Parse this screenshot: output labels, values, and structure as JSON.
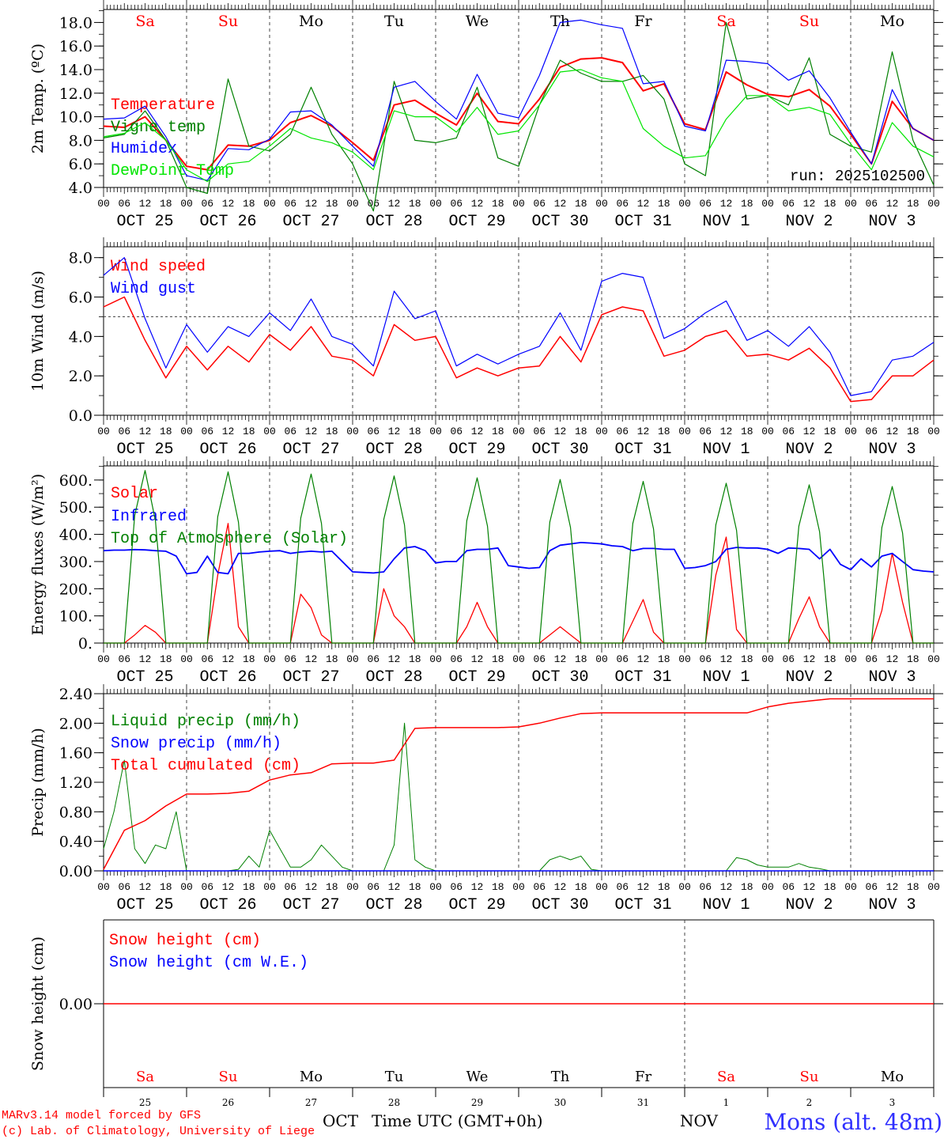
{
  "time_axis": {
    "hour_labels": [
      "00",
      "06",
      "12",
      "18"
    ],
    "dates": [
      "OCT 25",
      "OCT 26",
      "OCT 27",
      "OCT 28",
      "OCT 29",
      "OCT 30",
      "OCT 31",
      "NOV  1",
      "NOV  2",
      "NOV  3"
    ],
    "weekdays": [
      "Sa",
      "Su",
      "Mo",
      "Tu",
      "We",
      "Th",
      "Fr",
      "Sa",
      "Su",
      "Mo"
    ],
    "weekend": [
      true,
      true,
      false,
      false,
      false,
      false,
      false,
      true,
      true,
      false
    ],
    "day_numbers": [
      "25",
      "26",
      "27",
      "28",
      "29",
      "30",
      "31",
      "1",
      "2",
      "3"
    ],
    "month_labels": [
      "OCT",
      "NOV"
    ],
    "xlabel": "Time UTC (GMT+0h)"
  },
  "colors": {
    "red": "#ff0000",
    "blue": "#0000ff",
    "darkgreen": "#008000",
    "green": "#00e600",
    "black": "#000000",
    "weekday": "#000000",
    "weekend": "#ff0000"
  },
  "run_label": "run: 2025102500",
  "footer": {
    "model": "MARv3.14 model forced by GFS",
    "credit": "(c) Lab. of Climatology, University of Liege",
    "station": "Mons (alt. 48m)"
  },
  "chart_data": [
    {
      "type": "line",
      "ylabel": "2m Temp. (ºC)",
      "ylim": [
        4,
        19.1
      ],
      "yticks": [
        4,
        6,
        8,
        10,
        12,
        14,
        16,
        18
      ],
      "ytick_labels": [
        "4.0",
        "6.0",
        "8.0",
        "10.0",
        "12.0",
        "14.0",
        "16.0",
        "18.0"
      ],
      "yminor": 1,
      "series": [
        {
          "name": "Temperature",
          "color": "#ff0000",
          "width": 2,
          "step_hours": 6,
          "values": [
            9.2,
            9.1,
            10.0,
            8.0,
            5.8,
            5.5,
            7.6,
            7.5,
            8.0,
            9.5,
            10.1,
            9.2,
            7.8,
            6.3,
            11.0,
            11.4,
            10.3,
            9.3,
            12.0,
            9.6,
            9.4,
            11.5,
            14.2,
            14.9,
            15.0,
            14.6,
            12.2,
            12.8,
            9.4,
            8.9,
            13.8,
            12.7,
            11.9,
            11.7,
            12.3,
            10.9,
            8.5,
            6.0,
            11.3,
            9.0,
            8.0
          ]
        },
        {
          "name": "Vigne temp",
          "color": "#008000",
          "width": 1.2,
          "step_hours": 6,
          "values": [
            8.2,
            8.5,
            10.5,
            8.0,
            4.0,
            3.5,
            13.2,
            7.5,
            7.1,
            8.5,
            12.5,
            8.5,
            6.0,
            2.0,
            13.0,
            8.0,
            7.8,
            8.2,
            12.5,
            6.5,
            5.8,
            11.0,
            14.8,
            13.7,
            13.0,
            13.0,
            13.5,
            11.5,
            6.0,
            5.0,
            18.0,
            11.5,
            11.8,
            11.0,
            15.0,
            8.5,
            7.5,
            7.0,
            15.5,
            8.0,
            4.2
          ]
        },
        {
          "name": "Humidex",
          "color": "#0000ff",
          "width": 1.2,
          "step_hours": 6,
          "values": [
            9.8,
            9.9,
            10.9,
            8.3,
            5.0,
            4.6,
            7.3,
            7.2,
            8.1,
            10.4,
            10.5,
            9.3,
            7.5,
            5.8,
            12.5,
            13.0,
            11.3,
            9.8,
            13.6,
            10.3,
            9.9,
            13.5,
            18.0,
            18.2,
            17.8,
            17.5,
            12.8,
            13.0,
            9.2,
            8.8,
            14.8,
            14.7,
            14.5,
            13.1,
            13.9,
            11.6,
            8.7,
            6.0,
            12.3,
            9.0,
            8.0
          ]
        },
        {
          "name": "DewPoint Temp",
          "color": "#00e600",
          "width": 1.2,
          "step_hours": 6,
          "values": [
            8.3,
            8.6,
            9.5,
            8.0,
            5.5,
            4.5,
            6.0,
            6.2,
            7.5,
            9.0,
            8.2,
            7.8,
            7.0,
            5.5,
            10.5,
            10.0,
            10.0,
            8.7,
            10.8,
            8.5,
            8.8,
            11.0,
            13.8,
            14.0,
            13.3,
            13.0,
            9.0,
            7.5,
            6.5,
            6.7,
            9.8,
            11.8,
            11.8,
            10.5,
            10.8,
            10.2,
            7.7,
            5.5,
            9.5,
            7.5,
            6.6
          ]
        }
      ]
    },
    {
      "type": "line",
      "ylabel": "10m Wind (m/s)",
      "ylim": [
        0,
        8.55
      ],
      "yticks": [
        0,
        2,
        4,
        6,
        8
      ],
      "ytick_labels": [
        "0.0",
        "2.0",
        "4.0",
        "6.0",
        "8.0"
      ],
      "yminor": 1,
      "reference_line": 5.0,
      "series": [
        {
          "name": "Wind speed",
          "color": "#ff0000",
          "width": 1.5,
          "step_hours": 6,
          "values": [
            5.5,
            6.0,
            3.8,
            1.9,
            3.5,
            2.3,
            3.5,
            2.7,
            4.1,
            3.3,
            4.5,
            3.0,
            2.8,
            2.0,
            4.6,
            3.8,
            4.0,
            1.9,
            2.4,
            2.0,
            2.4,
            2.5,
            4.0,
            2.7,
            5.1,
            5.5,
            5.3,
            3.0,
            3.3,
            4.0,
            4.3,
            3.0,
            3.1,
            2.8,
            3.4,
            2.4,
            0.7,
            0.8,
            2.0,
            2.0,
            2.8
          ]
        },
        {
          "name": "Wind gust",
          "color": "#0000ff",
          "width": 1.2,
          "step_hours": 6,
          "values": [
            7.1,
            8.0,
            4.9,
            2.4,
            4.6,
            3.2,
            4.5,
            4.0,
            5.2,
            4.3,
            5.9,
            4.0,
            3.6,
            2.5,
            6.3,
            4.9,
            5.3,
            2.5,
            3.1,
            2.6,
            3.1,
            3.5,
            5.2,
            3.3,
            6.8,
            7.2,
            7.0,
            3.9,
            4.4,
            5.2,
            5.8,
            3.8,
            4.3,
            3.5,
            4.5,
            3.2,
            1.0,
            1.2,
            2.8,
            3.0,
            3.7
          ]
        }
      ]
    },
    {
      "type": "line",
      "ylabel": "Energy fluxes (W/m²)",
      "ylim": [
        0,
        652
      ],
      "yticks": [
        0,
        100,
        200,
        300,
        400,
        500,
        600
      ],
      "ytick_labels": [
        "0.",
        "100.",
        "200.",
        "300.",
        "400.",
        "500.",
        "600."
      ],
      "yminor": 50,
      "series": [
        {
          "name": "Solar",
          "color": "#ff0000",
          "width": 1.3,
          "step_hours": 3,
          "values": [
            0,
            0,
            0,
            30,
            65,
            40,
            0,
            0,
            0,
            0,
            0,
            250,
            440,
            60,
            0,
            0,
            0,
            0,
            0,
            180,
            130,
            30,
            0,
            0,
            0,
            0,
            0,
            200,
            100,
            60,
            0,
            0,
            0,
            0,
            0,
            60,
            150,
            60,
            0,
            0,
            0,
            0,
            0,
            30,
            60,
            30,
            0,
            0,
            0,
            0,
            0,
            80,
            160,
            40,
            0,
            0,
            0,
            0,
            0,
            250,
            390,
            50,
            0,
            0,
            0,
            0,
            0,
            90,
            170,
            60,
            0,
            0,
            0,
            0,
            0,
            120,
            330,
            150,
            0,
            0,
            0
          ]
        },
        {
          "name": "Infrared",
          "color": "#0000ff",
          "width": 1.8,
          "step_hours": 3,
          "values": [
            340,
            342,
            342,
            344,
            343,
            340,
            338,
            320,
            255,
            260,
            320,
            260,
            255,
            330,
            330,
            335,
            338,
            340,
            330,
            335,
            338,
            335,
            338,
            300,
            262,
            260,
            258,
            262,
            310,
            350,
            355,
            340,
            295,
            300,
            300,
            340,
            345,
            345,
            350,
            285,
            280,
            275,
            278,
            340,
            360,
            365,
            370,
            368,
            365,
            358,
            355,
            340,
            348,
            348,
            345,
            345,
            275,
            278,
            285,
            300,
            345,
            352,
            350,
            350,
            345,
            330,
            350,
            348,
            345,
            310,
            345,
            290,
            270,
            310,
            280,
            320,
            330,
            300,
            270,
            265,
            262
          ]
        },
        {
          "name": "Top of Atmosphere (Solar)",
          "color": "#008000",
          "width": 1.2,
          "step_hours": 3,
          "values": [
            0,
            0,
            0,
            470,
            635,
            450,
            0,
            0,
            0,
            0,
            0,
            465,
            630,
            445,
            0,
            0,
            0,
            0,
            0,
            460,
            622,
            440,
            0,
            0,
            0,
            0,
            0,
            455,
            615,
            435,
            0,
            0,
            0,
            0,
            0,
            450,
            608,
            430,
            0,
            0,
            0,
            0,
            0,
            445,
            602,
            425,
            0,
            0,
            0,
            0,
            0,
            440,
            595,
            420,
            0,
            0,
            0,
            0,
            0,
            435,
            588,
            415,
            0,
            0,
            0,
            0,
            0,
            430,
            582,
            410,
            0,
            0,
            0,
            0,
            0,
            425,
            576,
            405,
            0,
            0,
            0
          ]
        }
      ]
    },
    {
      "type": "line",
      "ylabel": "Precip (mm/h)",
      "ylim": [
        0,
        2.4
      ],
      "yticks": [
        0,
        0.4,
        0.8,
        1.2,
        1.6,
        2.0,
        2.4
      ],
      "ytick_labels": [
        "0.00",
        "0.40",
        "0.80",
        "1.20",
        "1.60",
        "2.00",
        "2.40"
      ],
      "yminor": 0.2,
      "series": [
        {
          "name": "Liquid precip (mm/h)",
          "color": "#008000",
          "width": 1,
          "step_hours": 3,
          "values": [
            0.3,
            0.8,
            1.5,
            0.3,
            0.1,
            0.35,
            0.3,
            0.8,
            0,
            0,
            0,
            0,
            0,
            0.02,
            0.2,
            0.05,
            0.55,
            0.3,
            0.05,
            0.05,
            0.15,
            0.35,
            0.2,
            0.05,
            0,
            0,
            0,
            0,
            0.35,
            2.0,
            0.15,
            0.05,
            0,
            0,
            0,
            0,
            0,
            0,
            0,
            0,
            0,
            0,
            0,
            0.15,
            0.2,
            0.15,
            0.2,
            0.02,
            0,
            0,
            0,
            0,
            0,
            0,
            0,
            0,
            0,
            0,
            0,
            0,
            0,
            0.18,
            0.15,
            0.08,
            0.05,
            0.05,
            0.05,
            0.1,
            0.05,
            0.03,
            0,
            0,
            0,
            0,
            0,
            0,
            0,
            0,
            0,
            0,
            0
          ]
        },
        {
          "name": "Snow precip (mm/h)",
          "color": "#0000ff",
          "width": 1.5,
          "step_hours": 240,
          "values": [
            0,
            0
          ]
        },
        {
          "name": "Total cumulated (cm)",
          "color": "#ff0000",
          "width": 1.5,
          "step_hours": 6,
          "values": [
            0.02,
            0.55,
            0.68,
            0.88,
            1.04,
            1.04,
            1.05,
            1.08,
            1.23,
            1.3,
            1.33,
            1.45,
            1.46,
            1.46,
            1.5,
            1.93,
            1.94,
            1.94,
            1.94,
            1.94,
            1.95,
            2.0,
            2.07,
            2.13,
            2.14,
            2.14,
            2.14,
            2.14,
            2.14,
            2.14,
            2.14,
            2.14,
            2.22,
            2.27,
            2.3,
            2.33,
            2.33,
            2.33,
            2.33,
            2.33,
            2.33
          ]
        }
      ]
    },
    {
      "type": "line",
      "ylabel": "Snow height (cm)",
      "ylim": [
        -1,
        1
      ],
      "yticks": [
        0
      ],
      "ytick_labels": [
        "0.00"
      ],
      "series": [
        {
          "name": "Snow height (cm)",
          "color": "#ff0000",
          "width": 1.5,
          "step_hours": 240,
          "values": [
            0,
            0
          ]
        },
        {
          "name": "Snow height (cm W.E.)",
          "color": "#0000ff",
          "width": 0,
          "step_hours": 240,
          "values": [
            0,
            0
          ]
        }
      ]
    }
  ]
}
